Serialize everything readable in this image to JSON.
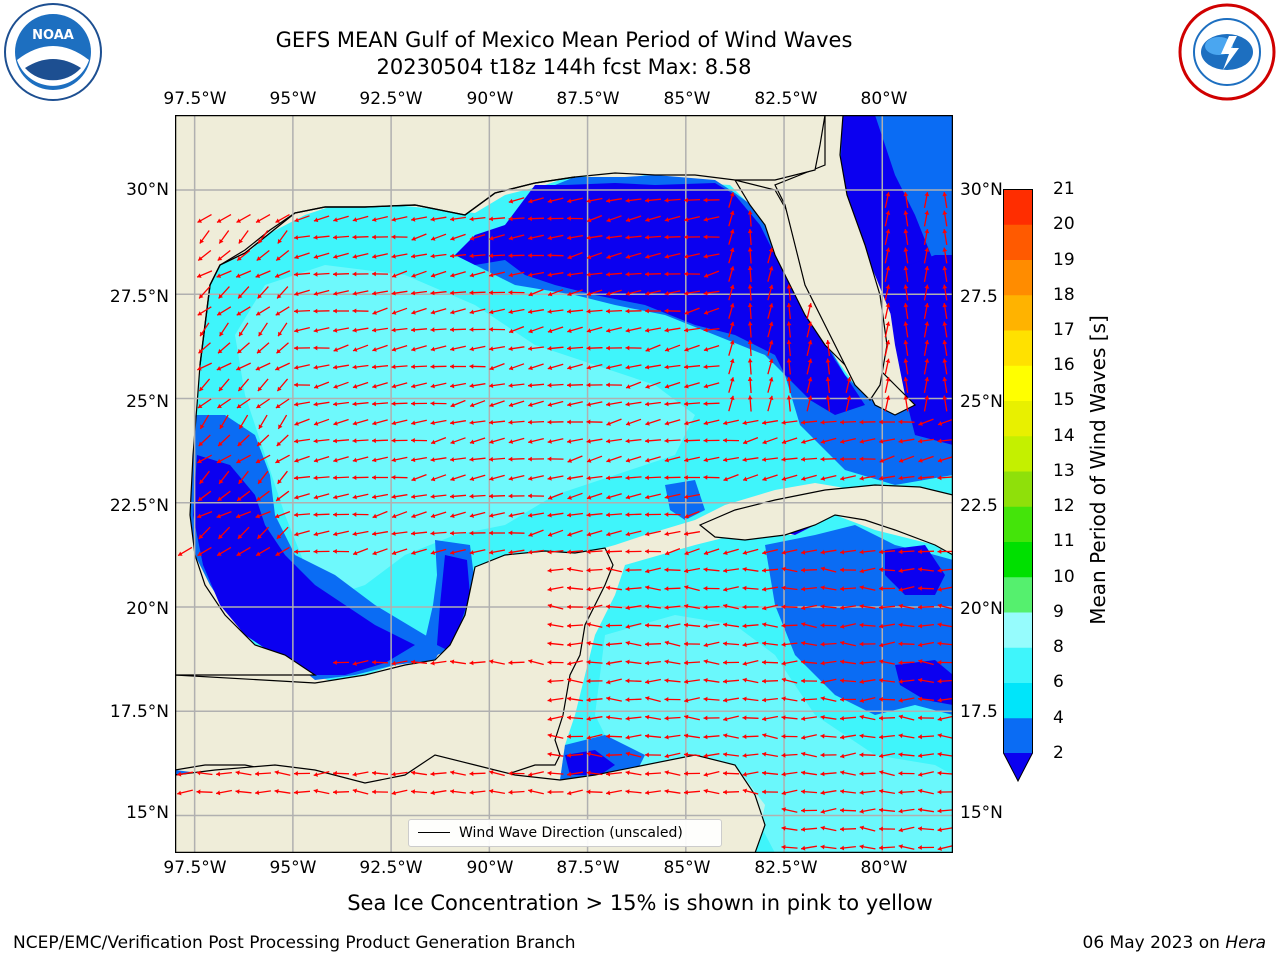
{
  "header": {
    "title_line1": "GEFS MEAN Gulf of Mexico Mean Period of Wind Waves",
    "title_line2": "20230504 t18z 144h fcst   Max: 8.58"
  },
  "logos": {
    "left": "noaa-logo",
    "right": "nws-logo"
  },
  "map": {
    "lon_ticks_top": [
      "97.5°W",
      "95°W",
      "92.5°W",
      "90°W",
      "87.5°W",
      "85°W",
      "82.5°W",
      "80°W"
    ],
    "lon_ticks_bottom": [
      "97.5°W",
      "95°W",
      "92.5°W",
      "90°W",
      "87.5°W",
      "85°W",
      "82.5°W",
      "80°W"
    ],
    "lat_ticks_left": [
      "30°N",
      "27.5°N",
      "25°N",
      "22.5°N",
      "20°N",
      "17.5°N",
      "15°N"
    ],
    "lat_ticks_right": [
      "30°N",
      "27.5",
      "25°N",
      "22.5",
      "20°N",
      "17.5",
      "15°N"
    ],
    "lon_values": [
      -97.5,
      -95,
      -92.5,
      -90,
      -87.5,
      -85,
      -82.5,
      -80
    ],
    "lat_values": [
      30,
      27.5,
      25,
      22.5,
      20,
      17.5,
      15
    ],
    "extent": {
      "lon": [
        -98,
        -78.2
      ],
      "lat": [
        14.1,
        31.8
      ]
    },
    "legend_label": "Wind Wave Direction (unscaled)",
    "colors": {
      "land": "#efedd9",
      "grid": "#b0b0b0",
      "arrows": "#ff0000",
      "coast": "#000000"
    }
  },
  "colorbar": {
    "label": "Mean Period of Wind Waves [s]",
    "tick_labels": [
      "2",
      "4",
      "6",
      "8",
      "9",
      "10",
      "11",
      "12",
      "13",
      "14",
      "15",
      "16",
      "17",
      "18",
      "19",
      "20",
      "21"
    ],
    "levels": [
      2,
      4,
      6,
      8,
      9,
      10,
      11,
      12,
      13,
      14,
      15,
      16,
      17,
      18,
      19,
      20,
      21
    ],
    "colors": [
      "#0a6cf4",
      "#00e5fa",
      "#3ff5fb",
      "#96fcfd",
      "#55f06e",
      "#00e000",
      "#44e40a",
      "#8fe00a",
      "#c4f000",
      "#e8f000",
      "#ffff00",
      "#ffe100",
      "#ffb300",
      "#ff8c00",
      "#ff5a00",
      "#ff2d00"
    ],
    "under_color": "#0b00f0",
    "extend": "min"
  },
  "footer": {
    "ice_note": "Sea Ice Concentration > 15% is shown in pink to yellow",
    "left": "NCEP/EMC/Verification Post Processing Product Generation Branch",
    "date": "06 May 2023 on ",
    "machine": "Hera"
  }
}
